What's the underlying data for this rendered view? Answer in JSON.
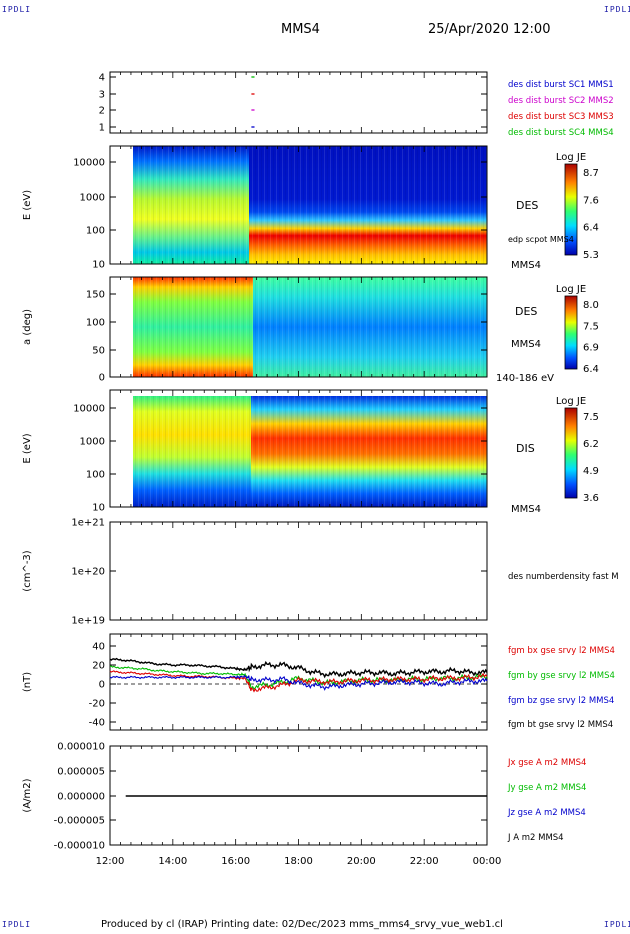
{
  "corner_label": "IPDLI",
  "header": {
    "spacecraft": "MMS4",
    "datetime": "25/Apr/2020 12:00"
  },
  "footer": {
    "text": "Produced by cl (IRAP)   Printing date: 02/Dec/2023   mms_mms4_srvy_vue_web1.cl"
  },
  "colors": {
    "blue": "#0000cc",
    "magenta": "#cc00cc",
    "red": "#dd0000",
    "green": "#00bb00",
    "black": "#000000"
  },
  "chart_data": [
    {
      "type": "scatter",
      "panel": "burst-availability",
      "yticks": [
        "4",
        "3",
        "2",
        "1"
      ],
      "legend": [
        {
          "name": "des dist burst SC1 MMS1",
          "color": "#0000cc"
        },
        {
          "name": "des dist burst SC2 MMS2",
          "color": "#cc00cc"
        },
        {
          "name": "des dist burst SC3 MMS3",
          "color": "#dd0000"
        },
        {
          "name": "des dist burst SC4 MMS4",
          "color": "#00bb00"
        }
      ],
      "segments": [
        {
          "spacecraft": 4,
          "x": [
            16.5,
            16.6
          ]
        },
        {
          "spacecraft": 3,
          "x": [
            16.5,
            16.6
          ]
        },
        {
          "spacecraft": 2,
          "x": [
            16.5,
            16.6
          ]
        },
        {
          "spacecraft": 1,
          "x": [
            16.5,
            16.6
          ]
        }
      ]
    },
    {
      "type": "heatmap",
      "panel": "des-energy",
      "ylabel": "E (eV)",
      "yticks": [
        "10000",
        "1000",
        "100",
        "10"
      ],
      "ylim": [
        10,
        30000
      ],
      "yscale": "log",
      "right_labels": [
        "DES",
        "edp scpot MMS4",
        "MMS4"
      ],
      "colorbar": {
        "title": "Log JE",
        "ticks": [
          "8.7",
          "7.6",
          "6.4",
          "5.3"
        ]
      }
    },
    {
      "type": "heatmap",
      "panel": "des-pitch-angle",
      "ylabel": "a (deg)",
      "yticks": [
        "150",
        "100",
        "50",
        "0"
      ],
      "ylim": [
        0,
        180
      ],
      "right_labels": [
        "DES",
        "MMS4",
        "140-186 eV"
      ],
      "colorbar": {
        "title": "Log JE",
        "ticks": [
          "8.0",
          "7.5",
          "6.9",
          "6.4"
        ]
      }
    },
    {
      "type": "heatmap",
      "panel": "dis-energy",
      "ylabel": "E (eV)",
      "yticks": [
        "10000",
        "1000",
        "100",
        "10"
      ],
      "ylim": [
        10,
        20000
      ],
      "yscale": "log",
      "right_labels": [
        "DIS",
        "MMS4"
      ],
      "colorbar": {
        "title": "Log JE",
        "ticks": [
          "7.5",
          "6.2",
          "4.9",
          "3.6"
        ]
      }
    },
    {
      "type": "line",
      "panel": "density",
      "ylabel": "(cm^-3)",
      "yticks": [
        "1e+21",
        "1e+20",
        "1e+19"
      ],
      "yscale": "log",
      "series_labels": [
        {
          "name": "des numberdensity fast M",
          "color": "#000000"
        }
      ]
    },
    {
      "type": "line",
      "panel": "fgm",
      "ylabel": "(nT)",
      "yticks": [
        "40",
        "20",
        "0",
        "-20",
        "-40"
      ],
      "ylim": [
        -50,
        50
      ],
      "series_labels": [
        {
          "name": "fgm bx gse srvy l2 MMS4",
          "color": "#dd0000"
        },
        {
          "name": "fgm by gse srvy l2 MMS4",
          "color": "#00bb00"
        },
        {
          "name": "fgm bz gse srvy l2 MMS4",
          "color": "#0000cc"
        },
        {
          "name": "fgm bt gse srvy l2 MMS4",
          "color": "#000000"
        }
      ],
      "series": [
        {
          "color": "#000000",
          "x": [
            12,
            12.5,
            13,
            13.5,
            14,
            14.5,
            15,
            15.5,
            16,
            16.3,
            16.5,
            17,
            17.5,
            18,
            18.5,
            19,
            19.5,
            20,
            20.5,
            21,
            21.5,
            22,
            22.5,
            23,
            23.5,
            24
          ],
          "y": [
            26,
            25,
            23,
            21,
            20,
            20,
            19,
            18,
            16,
            15,
            18,
            20,
            20,
            17,
            12,
            10,
            11,
            12,
            12,
            11,
            12,
            13,
            13,
            14,
            12,
            12
          ]
        },
        {
          "color": "#00bb00",
          "x": [
            12,
            12.5,
            13,
            13.5,
            14,
            14.5,
            15,
            15.5,
            16,
            16.3,
            16.5,
            17,
            17.5,
            18,
            18.5,
            19,
            19.5,
            20,
            20.5,
            21,
            21.5,
            22,
            22.5,
            23,
            23.5,
            24
          ],
          "y": [
            18,
            17,
            16,
            14,
            13,
            12,
            11,
            11,
            10,
            10,
            -3,
            -1,
            2,
            6,
            3,
            1,
            3,
            4,
            4,
            4,
            5,
            5,
            6,
            6,
            7,
            8
          ]
        },
        {
          "color": "#dd0000",
          "x": [
            12,
            12.5,
            13,
            13.5,
            14,
            14.5,
            15,
            15.5,
            16,
            16.3,
            16.5,
            17,
            17.5,
            18,
            18.5,
            19,
            19.5,
            20,
            20.5,
            21,
            21.5,
            22,
            22.5,
            23,
            23.5,
            24
          ],
          "y": [
            13,
            12,
            11,
            10,
            9,
            8,
            8,
            7,
            6,
            6,
            -6,
            -4,
            -1,
            4,
            3,
            2,
            3,
            4,
            4,
            5,
            5,
            5,
            6,
            6,
            7,
            8
          ]
        },
        {
          "color": "#0000cc",
          "x": [
            12,
            12.5,
            13,
            13.5,
            14,
            14.5,
            15,
            15.5,
            16,
            16.3,
            16.5,
            17,
            17.5,
            18,
            18.5,
            19,
            19.5,
            20,
            20.5,
            21,
            21.5,
            22,
            22.5,
            23,
            23.5,
            24
          ],
          "y": [
            7,
            7,
            7,
            7,
            7,
            7,
            7,
            7,
            7,
            8,
            5,
            4,
            5,
            1,
            -2,
            -3,
            -1,
            0,
            1,
            2,
            2,
            1,
            0,
            2,
            3,
            3
          ]
        }
      ]
    },
    {
      "type": "line",
      "panel": "current",
      "ylabel": "(A/m2)",
      "yticks": [
        "0.000010",
        "0.000005",
        "0.000000",
        "-0.000005",
        "-0.000010"
      ],
      "ylim": [
        -1e-05,
        1e-05
      ],
      "series_labels": [
        {
          "name": "Jx gse A m2 MMS4",
          "color": "#dd0000"
        },
        {
          "name": "Jy gse A m2 MMS4",
          "color": "#00bb00"
        },
        {
          "name": "Jz gse A m2 MMS4",
          "color": "#0000cc"
        },
        {
          "name": "J A m2 MMS4",
          "color": "#000000"
        }
      ],
      "series": [
        {
          "color": "#000000",
          "x": [
            12.5,
            24
          ],
          "y": [
            0,
            0
          ]
        }
      ]
    }
  ],
  "x_axis": {
    "ticks": [
      "12:00",
      "14:00",
      "16:00",
      "18:00",
      "20:00",
      "22:00",
      "00:00"
    ],
    "xlim": [
      12,
      24
    ]
  }
}
